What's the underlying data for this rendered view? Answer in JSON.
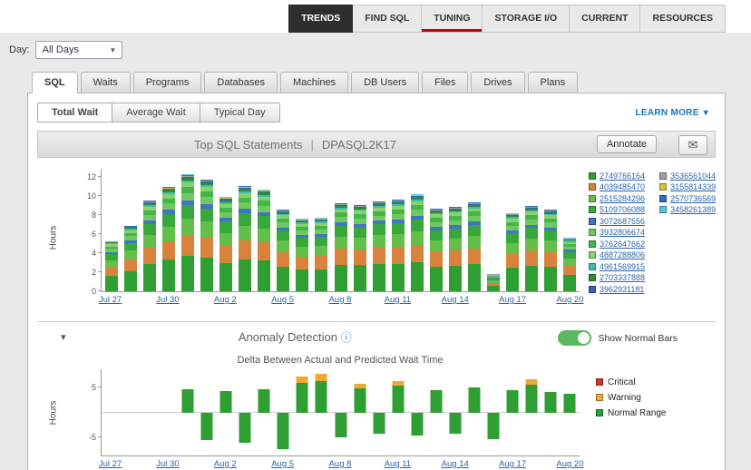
{
  "nav": {
    "tabs": [
      {
        "label": "TRENDS",
        "state": "active"
      },
      {
        "label": "FIND SQL",
        "state": "normal"
      },
      {
        "label": "TUNING",
        "state": "underlined"
      },
      {
        "label": "STORAGE I/O",
        "state": "normal"
      },
      {
        "label": "CURRENT",
        "state": "normal"
      },
      {
        "label": "RESOURCES",
        "state": "normal"
      }
    ]
  },
  "day_filter": {
    "label": "Day:",
    "value": "All Days"
  },
  "section_tabs": [
    {
      "label": "SQL",
      "active": true
    },
    {
      "label": "Waits",
      "active": false
    },
    {
      "label": "Programs",
      "active": false
    },
    {
      "label": "Databases",
      "active": false
    },
    {
      "label": "Machines",
      "active": false
    },
    {
      "label": "DB Users",
      "active": false
    },
    {
      "label": "Files",
      "active": false
    },
    {
      "label": "Drives",
      "active": false
    },
    {
      "label": "Plans",
      "active": false
    }
  ],
  "view_tabs": [
    {
      "label": "Total Wait",
      "active": true
    },
    {
      "label": "Average Wait",
      "active": false
    },
    {
      "label": "Typical Day",
      "active": false
    }
  ],
  "learn_more_label": "LEARN MORE",
  "chart_header": {
    "title": "Top SQL Statements",
    "separator": "|",
    "instance": "DPASQL2K17",
    "annotate_label": "Annotate"
  },
  "anomaly": {
    "title": "Anomaly Detection",
    "toggle_label": "Show Normal Bars",
    "toggle_on": true,
    "subtitle": "Delta Between Actual and Predicted Wait Time"
  },
  "icons": {
    "caret_down": "▾",
    "collapse": "▾",
    "mail": "✉",
    "info": "ⓘ"
  },
  "chart_data": [
    {
      "type": "bar",
      "stacked": true,
      "title": "Top SQL Statements | DPASQL2K17",
      "ylabel": "Hours",
      "ylim": [
        0,
        12.9
      ],
      "yticks": [
        0,
        2,
        4,
        6,
        8,
        10,
        12
      ],
      "x_slot_count": 25,
      "xticks": [
        {
          "label": "Jul 27",
          "slot": 0
        },
        {
          "label": "Jul 30",
          "slot": 3
        },
        {
          "label": "Aug 2",
          "slot": 6
        },
        {
          "label": "Aug 5",
          "slot": 9
        },
        {
          "label": "Aug 8",
          "slot": 12
        },
        {
          "label": "Aug 11",
          "slot": 15
        },
        {
          "label": "Aug 14",
          "slot": 18
        },
        {
          "label": "Aug 17",
          "slot": 21
        },
        {
          "label": "Aug 20",
          "slot": 24
        }
      ],
      "bar_totals": [
        5.3,
        6.9,
        9.6,
        11.0,
        12.3,
        11.8,
        9.9,
        11.1,
        10.7,
        8.6,
        7.6,
        7.7,
        9.3,
        9.1,
        9.5,
        9.7,
        10.2,
        8.7,
        8.9,
        9.4,
        1.8,
        8.2,
        9.0,
        8.6,
        5.6
      ],
      "series": [
        {
          "name": "2749766164",
          "color": "#2f9e33",
          "fraction": 0.3
        },
        {
          "name": "4039485470",
          "color": "#d9823b",
          "fraction": 0.18
        },
        {
          "name": "2515284296",
          "color": "#63bf4a",
          "fraction": 0.14
        },
        {
          "name": "5109706088",
          "color": "#37a93c",
          "fraction": 0.12
        },
        {
          "name": "3072687556",
          "color": "#4472c4",
          "fraction": 0.04
        },
        {
          "name": "3932806674",
          "color": "#6fc95e",
          "fraction": 0.06
        },
        {
          "name": "3762647662",
          "color": "#44b649",
          "fraction": 0.05
        },
        {
          "name": "4887288806",
          "color": "#8ad06b",
          "fraction": 0.04
        },
        {
          "name": "4961569915",
          "color": "#3dbdb0",
          "fraction": 0.02
        },
        {
          "name": "2703337888",
          "color": "#2e8b3a",
          "fraction": 0.02
        },
        {
          "name": "3962931181",
          "color": "#3f5fae",
          "fraction": 0.01
        },
        {
          "name": "3536561044",
          "color": "#9aa0a6",
          "fraction": 0.005
        },
        {
          "name": "3155814339",
          "color": "#d4c43c",
          "fraction": 0.005
        },
        {
          "name": "2570736569",
          "color": "#2f6fbf",
          "fraction": 0.005
        },
        {
          "name": "3458261389",
          "color": "#56c8d8",
          "fraction": 0.005
        }
      ],
      "legend_columns": [
        11,
        4
      ]
    },
    {
      "type": "bar",
      "title": "Delta Between Actual and Predicted Wait Time",
      "ylabel": "Hours",
      "ylim": [
        -8.5,
        8.5
      ],
      "yticks": [
        5,
        -5
      ],
      "x_slot_count": 25,
      "xticks": [
        {
          "label": "Jul 27",
          "slot": 0
        },
        {
          "label": "Jul 30",
          "slot": 3
        },
        {
          "label": "Aug 2",
          "slot": 6
        },
        {
          "label": "Aug 5",
          "slot": 9
        },
        {
          "label": "Aug 8",
          "slot": 12
        },
        {
          "label": "Aug 11",
          "slot": 15
        },
        {
          "label": "Aug 14",
          "slot": 18
        },
        {
          "label": "Aug 17",
          "slot": 21
        },
        {
          "label": "Aug 20",
          "slot": 24
        }
      ],
      "bars": [
        {
          "slot": 4,
          "value": 4.5,
          "warning": 0
        },
        {
          "slot": 5,
          "value": -5.5,
          "warning": 0
        },
        {
          "slot": 6,
          "value": 4.2,
          "warning": 0
        },
        {
          "slot": 7,
          "value": -6.0,
          "warning": 0
        },
        {
          "slot": 8,
          "value": 4.6,
          "warning": 0
        },
        {
          "slot": 9,
          "value": -7.2,
          "warning": 0
        },
        {
          "slot": 10,
          "value": 7.0,
          "warning": 1.2
        },
        {
          "slot": 11,
          "value": 7.6,
          "warning": 1.4
        },
        {
          "slot": 12,
          "value": -5.0,
          "warning": 0
        },
        {
          "slot": 13,
          "value": 5.6,
          "warning": 0.8
        },
        {
          "slot": 14,
          "value": -4.2,
          "warning": 0
        },
        {
          "slot": 15,
          "value": 6.2,
          "warning": 1.0
        },
        {
          "slot": 16,
          "value": -4.6,
          "warning": 0
        },
        {
          "slot": 17,
          "value": 4.4,
          "warning": 0
        },
        {
          "slot": 18,
          "value": -4.2,
          "warning": 0
        },
        {
          "slot": 19,
          "value": 5.0,
          "warning": 0
        },
        {
          "slot": 20,
          "value": -5.2,
          "warning": 0
        },
        {
          "slot": 21,
          "value": 4.3,
          "warning": 0
        },
        {
          "slot": 22,
          "value": 6.6,
          "warning": 1.2
        },
        {
          "slot": 23,
          "value": 4.0,
          "warning": 0
        },
        {
          "slot": 24,
          "value": 3.7,
          "warning": 0
        }
      ],
      "legend": [
        {
          "label": "Critical",
          "color": "#d8342c"
        },
        {
          "label": "Warning",
          "color": "#f0a832"
        },
        {
          "label": "Normal Range",
          "color": "#2f9e33"
        }
      ]
    }
  ]
}
